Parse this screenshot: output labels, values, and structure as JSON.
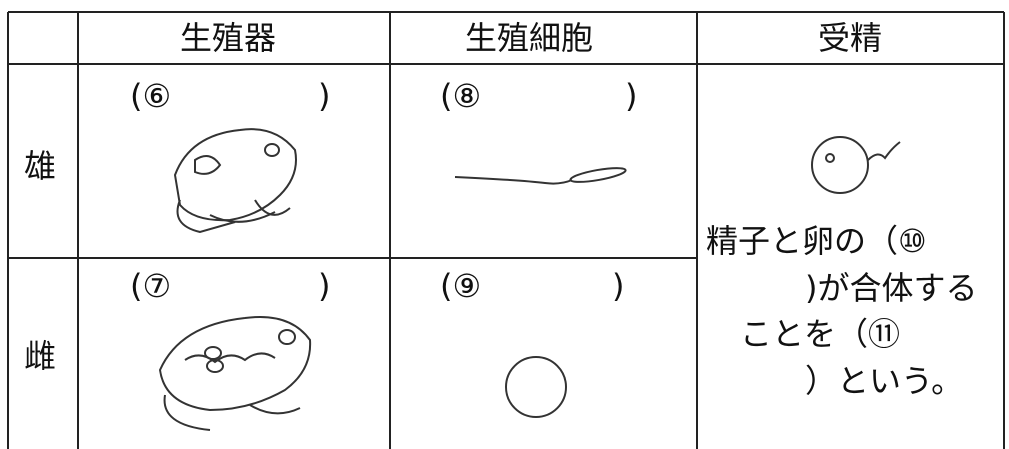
{
  "header": {
    "cells": [
      "生殖器",
      "生殖細胞",
      "受精"
    ]
  },
  "rows": [
    {
      "label": "雄",
      "organ_open": "(⑥",
      "organ_close": ")",
      "cell_open": "(⑧",
      "cell_close": ")"
    },
    {
      "label": "雌",
      "organ_open": "(⑦",
      "organ_close": ")",
      "cell_open": "(⑨",
      "cell_close": ")"
    }
  ],
  "fertilization": {
    "lines": [
      "精子と卵の（⑩",
      ")が合体する",
      "ことを（⑪",
      "）という。"
    ]
  }
}
